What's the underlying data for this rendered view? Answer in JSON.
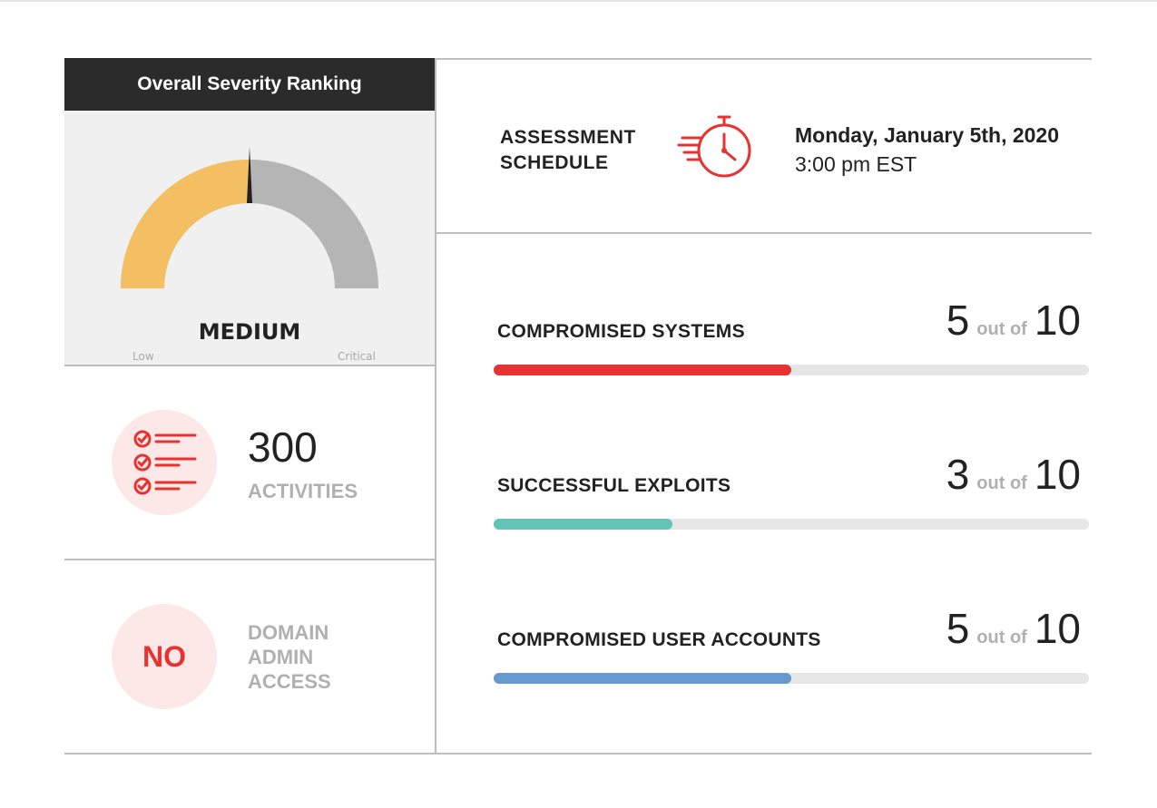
{
  "colors": {
    "red": "#e83232",
    "teal": "#63c3b4",
    "blue": "#6699cc",
    "gauge_fill": "#f4bf63",
    "gauge_track": "#b5b5b5",
    "icon_bg": "#fde8e8"
  },
  "severity": {
    "title": "Overall Severity Ranking",
    "level": "MEDIUM",
    "low_label": "Low",
    "critical_label": "Critical",
    "fraction": 0.5
  },
  "activities": {
    "icon": "checklist-icon",
    "count": "300",
    "label": "ACTIVITIES"
  },
  "domain_admin": {
    "value": "NO",
    "label": "DOMAIN ADMIN ACCESS"
  },
  "schedule": {
    "label": "ASSESSMENT SCHEDULE",
    "icon": "stopwatch-icon",
    "date": "Monday, January 5th, 2020",
    "time": "3:00 pm EST"
  },
  "metrics": [
    {
      "label": "COMPROMISED SYSTEMS",
      "value": "5",
      "out_of_text": "out of",
      "total": "10",
      "color": "#e83232"
    },
    {
      "label": "SUCCESSFUL EXPLOITS",
      "value": "3",
      "out_of_text": "out of",
      "total": "10",
      "color": "#63c3b4"
    },
    {
      "label": "COMPROMISED USER ACCOUNTS",
      "value": "5",
      "out_of_text": "out of",
      "total": "10",
      "color": "#6699cc"
    }
  ]
}
